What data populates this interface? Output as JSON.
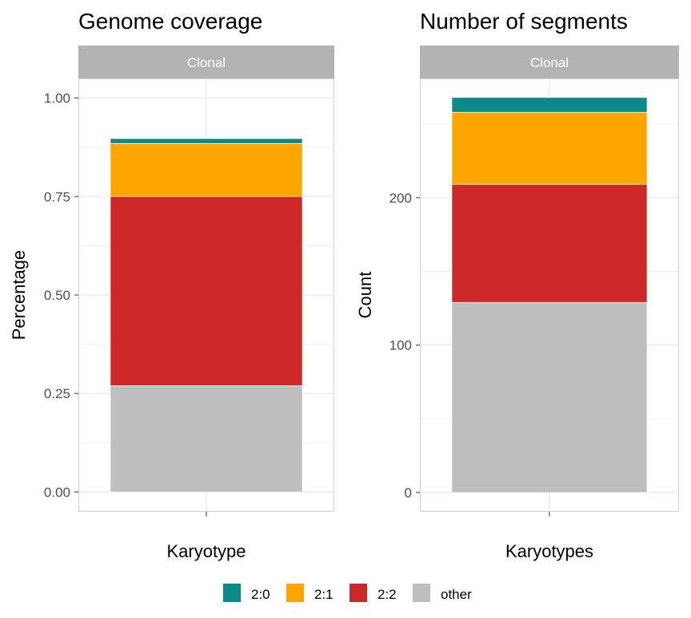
{
  "legend": {
    "items": [
      {
        "label": "2:0",
        "color": "#0b8a8a"
      },
      {
        "label": "2:1",
        "color": "#ffa500"
      },
      {
        "label": "2:2",
        "color": "#cc2828"
      },
      {
        "label": "other",
        "color": "#bebebe"
      }
    ]
  },
  "chart_data": [
    {
      "type": "bar",
      "stacked": true,
      "title": "Genome coverage",
      "facet": "Clonal",
      "xlabel": "Karyotype",
      "ylabel": "Percentage",
      "categories": [
        ""
      ],
      "ylim": [
        -0.05,
        1.05
      ],
      "yticks": [
        0,
        0.25,
        0.5,
        0.75,
        1
      ],
      "ytick_labels": [
        "0.00",
        "0.25",
        "0.50",
        "0.75",
        "1.00"
      ],
      "grid": true,
      "series": [
        {
          "name": "other",
          "values": [
            0.27
          ],
          "color": "#bebebe"
        },
        {
          "name": "2:2",
          "values": [
            0.48
          ],
          "color": "#cc2828"
        },
        {
          "name": "2:1",
          "values": [
            0.135
          ],
          "color": "#ffa500"
        },
        {
          "name": "2:0",
          "values": [
            0.012
          ],
          "color": "#0b8a8a"
        }
      ]
    },
    {
      "type": "bar",
      "stacked": true,
      "title": "Number of segments",
      "facet": "Clonal",
      "xlabel": "Karyotypes",
      "ylabel": "Count",
      "categories": [
        ""
      ],
      "ylim": [
        -13,
        281
      ],
      "yticks": [
        0,
        100,
        200
      ],
      "ytick_labels": [
        "0",
        "100",
        "200"
      ],
      "grid": true,
      "series": [
        {
          "name": "other",
          "values": [
            129
          ],
          "color": "#bebebe"
        },
        {
          "name": "2:2",
          "values": [
            80
          ],
          "color": "#cc2828"
        },
        {
          "name": "2:1",
          "values": [
            49
          ],
          "color": "#ffa500"
        },
        {
          "name": "2:0",
          "values": [
            10
          ],
          "color": "#0b8a8a"
        }
      ]
    }
  ]
}
